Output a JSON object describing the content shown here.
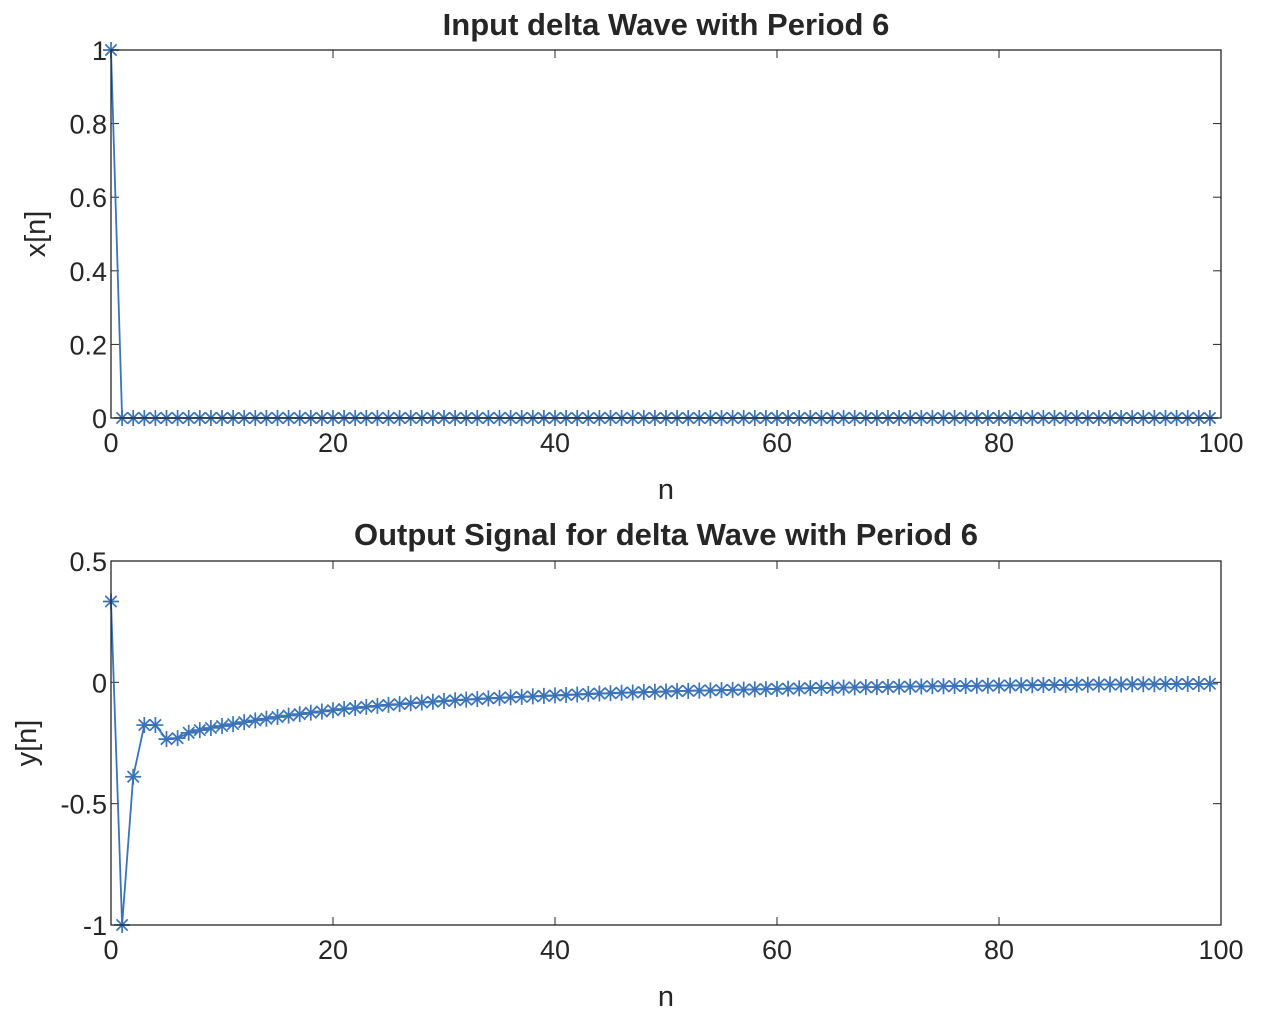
{
  "series_color": "#3a73b8",
  "chart_data": [
    {
      "type": "line",
      "marker": "asterisk",
      "title": "Input delta Wave with Period 6",
      "xlabel": "n",
      "ylabel": "x[n]",
      "xlim": [
        0,
        100
      ],
      "ylim": [
        0,
        1
      ],
      "xticks": [
        0,
        20,
        40,
        60,
        80,
        100
      ],
      "xtick_labels": [
        "0",
        "20",
        "40",
        "60",
        "80",
        "100"
      ],
      "yticks": [
        0,
        0.2,
        0.4,
        0.6,
        0.8,
        1
      ],
      "ytick_labels": [
        "0",
        "0.2",
        "0.4",
        "0.6",
        "0.8",
        "1"
      ],
      "grid": false,
      "x_range": [
        0,
        99
      ],
      "y": [
        1,
        0,
        0,
        0,
        0,
        0,
        0,
        0,
        0,
        0,
        0,
        0,
        0,
        0,
        0,
        0,
        0,
        0,
        0,
        0,
        0,
        0,
        0,
        0,
        0,
        0,
        0,
        0,
        0,
        0,
        0,
        0,
        0,
        0,
        0,
        0,
        0,
        0,
        0,
        0,
        0,
        0,
        0,
        0,
        0,
        0,
        0,
        0,
        0,
        0,
        0,
        0,
        0,
        0,
        0,
        0,
        0,
        0,
        0,
        0,
        0,
        0,
        0,
        0,
        0,
        0,
        0,
        0,
        0,
        0,
        0,
        0,
        0,
        0,
        0,
        0,
        0,
        0,
        0,
        0,
        0,
        0,
        0,
        0,
        0,
        0,
        0,
        0,
        0,
        0,
        0,
        0,
        0,
        0,
        0,
        0,
        0,
        0,
        0,
        0
      ]
    },
    {
      "type": "line",
      "marker": "asterisk",
      "title": "Output Signal for delta Wave with Period 6",
      "xlabel": "n",
      "ylabel": "y[n]",
      "xlim": [
        0,
        100
      ],
      "ylim": [
        -1,
        0.5
      ],
      "xticks": [
        0,
        20,
        40,
        60,
        80,
        100
      ],
      "xtick_labels": [
        "0",
        "20",
        "40",
        "60",
        "80",
        "100"
      ],
      "yticks": [
        -1,
        -0.5,
        0,
        0.5
      ],
      "ytick_labels": [
        "-1",
        "-0.5",
        "0",
        "0.5"
      ],
      "grid": false,
      "x_range": [
        0,
        99
      ],
      "y": [
        0.333,
        -1.0,
        -0.389,
        -0.176,
        -0.176,
        -0.234,
        -0.23,
        -0.208,
        -0.197,
        -0.188,
        -0.18,
        -0.172,
        -0.164,
        -0.157,
        -0.15,
        -0.143,
        -0.137,
        -0.131,
        -0.125,
        -0.12,
        -0.115,
        -0.11,
        -0.106,
        -0.101,
        -0.097,
        -0.093,
        -0.09,
        -0.086,
        -0.083,
        -0.08,
        -0.077,
        -0.074,
        -0.071,
        -0.069,
        -0.066,
        -0.064,
        -0.062,
        -0.06,
        -0.058,
        -0.056,
        -0.054,
        -0.052,
        -0.05,
        -0.048,
        -0.046,
        -0.045,
        -0.043,
        -0.042,
        -0.04,
        -0.039,
        -0.038,
        -0.036,
        -0.035,
        -0.034,
        -0.033,
        -0.032,
        -0.031,
        -0.03,
        -0.029,
        -0.028,
        -0.027,
        -0.026,
        -0.025,
        -0.024,
        -0.023,
        -0.023,
        -0.022,
        -0.021,
        -0.02,
        -0.02,
        -0.019,
        -0.018,
        -0.018,
        -0.017,
        -0.016,
        -0.016,
        -0.015,
        -0.015,
        -0.014,
        -0.014,
        -0.013,
        -0.013,
        -0.012,
        -0.012,
        -0.011,
        -0.011,
        -0.011,
        -0.01,
        -0.01,
        -0.009,
        -0.009,
        -0.009,
        -0.008,
        -0.008,
        -0.008,
        -0.007,
        -0.007,
        -0.007,
        -0.007,
        -0.006
      ]
    }
  ]
}
